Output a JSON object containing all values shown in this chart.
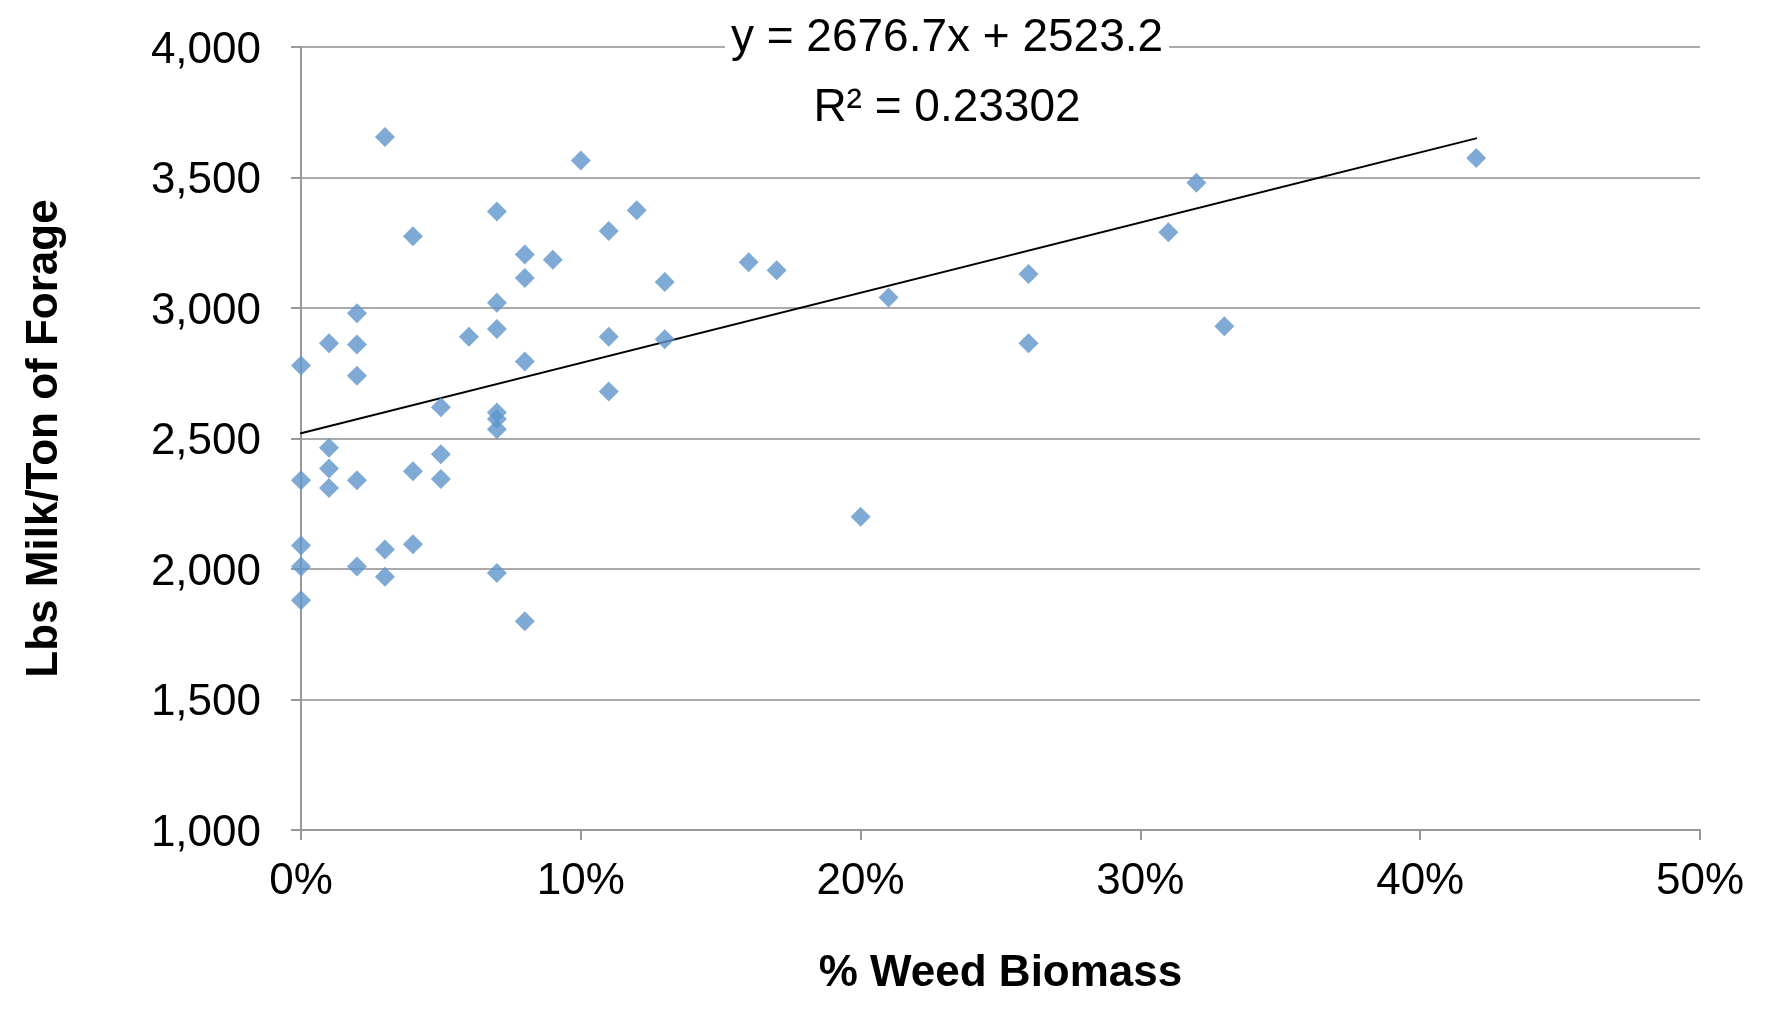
{
  "chart_data": {
    "type": "scatter",
    "xlabel": "% Weed Biomass",
    "ylabel": "Lbs Milk/Ton of Forage",
    "annotations": [
      "y = 2676.7x + 2523.2",
      "R² = 0.23302"
    ],
    "series": [
      {
        "type": "scatter",
        "color": "#5e95ca",
        "marker": "diamond",
        "x": [
          0,
          0,
          0,
          0,
          0,
          0.01,
          0.01,
          0.01,
          0.01,
          0.02,
          0.02,
          0.02,
          0.02,
          0.02,
          0.03,
          0.03,
          0.03,
          0.04,
          0.04,
          0.04,
          0.05,
          0.05,
          0.05,
          0.06,
          0.07,
          0.07,
          0.07,
          0.07,
          0.07,
          0.07,
          0.07,
          0.08,
          0.08,
          0.08,
          0.08,
          0.09,
          0.1,
          0.11,
          0.11,
          0.11,
          0.12,
          0.13,
          0.13,
          0.16,
          0.17,
          0.2,
          0.21,
          0.26,
          0.26,
          0.31,
          0.32,
          0.33,
          0.42
        ],
        "values": [
          2780,
          2340,
          2090,
          2010,
          1880,
          2865,
          2465,
          2385,
          2310,
          2980,
          2860,
          2740,
          2340,
          2010,
          3655,
          2075,
          1970,
          3275,
          2375,
          2095,
          2620,
          2440,
          2345,
          2890,
          3370,
          3020,
          2920,
          2600,
          2575,
          2535,
          1985,
          3205,
          3115,
          2795,
          1800,
          3185,
          3565,
          3295,
          2890,
          2680,
          3375,
          3100,
          2880,
          3175,
          3145,
          2200,
          3040,
          3130,
          2865,
          3290,
          3480,
          2930,
          3575
        ]
      },
      {
        "type": "line",
        "color": "#000000",
        "marker": "none",
        "x": [
          0,
          0.42
        ],
        "values": [
          2520,
          3650
        ]
      }
    ],
    "xlim": [
      0,
      0.5
    ],
    "xticks": [
      {
        "value": 0,
        "label": "0%"
      },
      {
        "value": 0.1,
        "label": "10%"
      },
      {
        "value": 0.2,
        "label": "20%"
      },
      {
        "value": 0.3,
        "label": "30%"
      },
      {
        "value": 0.4,
        "label": "40%"
      },
      {
        "value": 0.5,
        "label": "50%"
      }
    ],
    "ylim": [
      1000,
      4000
    ],
    "yticks": [
      {
        "value": 1000,
        "label": "1,000"
      },
      {
        "value": 1500,
        "label": "1,500"
      },
      {
        "value": 2000,
        "label": "2,000"
      },
      {
        "value": 2500,
        "label": "2,500"
      },
      {
        "value": 3000,
        "label": "3,000"
      },
      {
        "value": 3500,
        "label": "3,500"
      },
      {
        "value": 4000,
        "label": "4,000"
      }
    ],
    "grid": "y"
  }
}
